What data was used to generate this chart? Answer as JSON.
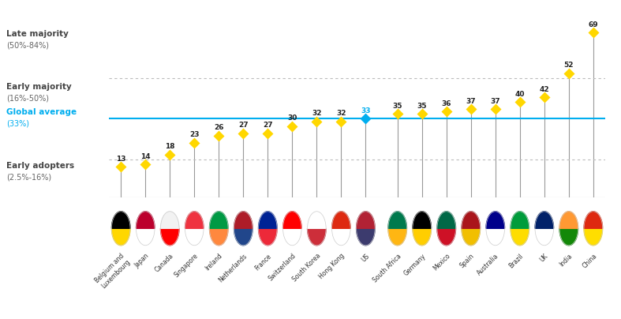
{
  "countries": [
    "Belgium and\nLuxembourg",
    "Japan",
    "Canada",
    "Singapore",
    "Ireland",
    "Netherlands",
    "France",
    "Switzerland",
    "South Korea",
    "Hong Kong",
    "US",
    "South Africa",
    "Germany",
    "Mexico",
    "Spain",
    "Australia",
    "Brazil",
    "UK",
    "India",
    "China"
  ],
  "values": [
    13,
    14,
    18,
    23,
    26,
    27,
    27,
    30,
    32,
    32,
    33,
    35,
    35,
    36,
    37,
    37,
    40,
    42,
    52,
    69
  ],
  "global_average": 33,
  "early_adopters_max": 16,
  "early_majority_max": 50,
  "dot_color_default": "#FFD700",
  "dot_color_us": "#00AEEF",
  "background_color": "#FFFFFF",
  "figure_width": 7.87,
  "figure_height": 4.04,
  "dpi": 100,
  "ylim": [
    0,
    80
  ],
  "global_avg_line_color": "#00AEEF",
  "dashed_line_color": "#BBBBBB",
  "label_text_color": "#444444",
  "label_sub_color": "#666666",
  "flag_data": [
    {
      "name": "Belgium and\nLuxembourg",
      "stripes": [
        "#000000",
        "#FFD700",
        "#FF0000"
      ],
      "dir": "v"
    },
    {
      "name": "Japan",
      "base": "#FFFFFF",
      "circle": "#BC002D"
    },
    {
      "name": "Canada",
      "base": "#FFFFFF",
      "sides": "#FF0000"
    },
    {
      "name": "Singapore",
      "base": "#FFFFFF",
      "top": "#EF3340"
    },
    {
      "name": "Ireland",
      "stripes": [
        "#169B62",
        "#FFFFFF",
        "#FF883E"
      ],
      "dir": "v"
    },
    {
      "name": "Netherlands",
      "stripes": [
        "#AE1C28",
        "#FFFFFF",
        "#21468B"
      ],
      "dir": "h"
    },
    {
      "name": "France",
      "stripes": [
        "#002395",
        "#FFFFFF",
        "#ED2939"
      ],
      "dir": "v"
    },
    {
      "name": "Switzerland",
      "base": "#FF0000",
      "cross": "#FFFFFF"
    },
    {
      "name": "South Korea",
      "base": "#FFFFFF",
      "symbol": "#CD2E3A"
    },
    {
      "name": "Hong Kong",
      "base": "#DE2910",
      "symbol": "#FFFFFF"
    },
    {
      "name": "US",
      "base": "#3C3B6E",
      "stripes": [
        "#B22234",
        "#FFFFFF"
      ]
    },
    {
      "name": "South Africa",
      "base": "#007A4D",
      "symbol": "#FFB612"
    },
    {
      "name": "Germany",
      "stripes": [
        "#000000",
        "#DD0000",
        "#FFCE00"
      ],
      "dir": "h"
    },
    {
      "name": "Mexico",
      "stripes": [
        "#006847",
        "#FFFFFF",
        "#CE1126"
      ],
      "dir": "v"
    },
    {
      "name": "Spain",
      "stripes": [
        "#AA151B",
        "#F1BF00",
        "#AA151B"
      ],
      "dir": "h"
    },
    {
      "name": "Australia",
      "base": "#00008B",
      "symbol": "#FFFFFF"
    },
    {
      "name": "Brazil",
      "base": "#009C3B",
      "diamond": "#FEDD00"
    },
    {
      "name": "UK",
      "base": "#012169",
      "cross": "#FFFFFF"
    },
    {
      "name": "India",
      "stripes": [
        "#FF9933",
        "#FFFFFF",
        "#138808"
      ],
      "dir": "h"
    },
    {
      "name": "China",
      "base": "#DE2910",
      "stars": "#FFDE00"
    }
  ]
}
